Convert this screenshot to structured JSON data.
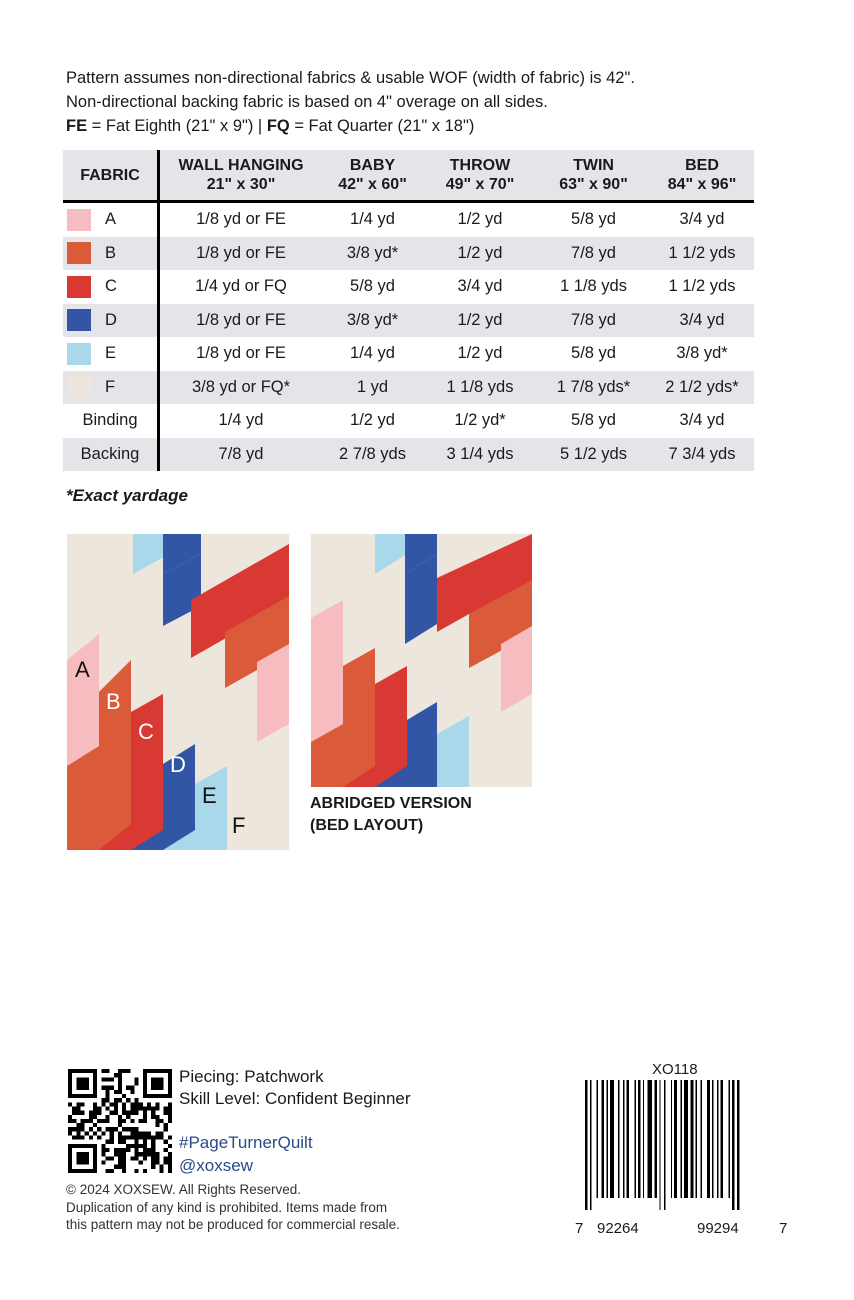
{
  "intro": {
    "line1": "Pattern assumes non-directional fabrics & usable WOF (width of fabric) is 42\".",
    "line2": "Non-directional backing fabric is based on 4\" overage on all sides.",
    "fe_abbr": "FE",
    "fe_text": " = Fat Eighth (21\" x 9\") | ",
    "fq_abbr": "FQ",
    "fq_text": " = Fat Quarter (21\" x 18\")"
  },
  "table": {
    "headers": [
      {
        "name": "FABRIC",
        "size": ""
      },
      {
        "name": "WALL HANGING",
        "size": "21\" x 30\""
      },
      {
        "name": "BABY",
        "size": "42\" x 60\""
      },
      {
        "name": "THROW",
        "size": "49\" x 70\""
      },
      {
        "name": "TWIN",
        "size": "63\" x 90\""
      },
      {
        "name": "BED",
        "size": "84\" x 96\""
      }
    ],
    "rows": [
      {
        "label": "A",
        "color": "#f7bcc0",
        "cells": [
          "1/8 yd or FE",
          "1/4 yd",
          "1/2 yd",
          "5/8 yd",
          "3/4 yd"
        ]
      },
      {
        "label": "B",
        "color": "#db5a3a",
        "cells": [
          "1/8 yd or FE",
          "3/8 yd*",
          "1/2 yd",
          "7/8 yd",
          "1 1/2 yds"
        ]
      },
      {
        "label": "C",
        "color": "#d83a33",
        "cells": [
          "1/4 yd or FQ",
          "5/8 yd",
          "3/4 yd",
          "1 1/8 yds",
          "1 1/2 yds"
        ]
      },
      {
        "label": "D",
        "color": "#3355a5",
        "cells": [
          "1/8 yd or FE",
          "3/8 yd*",
          "1/2 yd",
          "7/8 yd",
          "3/4 yd"
        ]
      },
      {
        "label": "E",
        "color": "#a8d8ea",
        "cells": [
          "1/8 yd or FE",
          "1/4 yd",
          "1/2 yd",
          "5/8 yd",
          "3/8 yd*"
        ]
      },
      {
        "label": "F",
        "color": "#ece6dc",
        "cells": [
          "3/8 yd or FQ*",
          "1 yd",
          "1 1/8 yds",
          "1 7/8 yds*",
          "2 1/2 yds*"
        ]
      },
      {
        "label": "Binding",
        "cells": [
          "1/4 yd",
          "1/2 yd",
          "1/2 yd*",
          "5/8 yd",
          "3/4 yd"
        ]
      },
      {
        "label": "Backing",
        "cells": [
          "7/8 yd",
          "2 7/8 yds",
          "3 1/4 yds",
          "5 1/2 yds",
          "7 3/4 yds"
        ]
      }
    ]
  },
  "footnote": "*Exact yardage",
  "quilt": {
    "letters": [
      "A",
      "B",
      "C",
      "D",
      "E",
      "F"
    ],
    "colors": {
      "A": "#f7bcc0",
      "B": "#db5a3a",
      "C": "#d83a33",
      "D": "#3355a5",
      "E": "#a8d8ea",
      "F": "#ece6dc"
    }
  },
  "abridged": {
    "line1": "ABRIDGED VERSION",
    "line2": "(BED LAYOUT)"
  },
  "info": {
    "piecing": "Piecing: Patchwork",
    "skill": "Skill Level: Confident Beginner",
    "hashtag": "#PageTurnerQuilt",
    "handle": "@xoxsew"
  },
  "copyright": {
    "line1": "© 2024 XOXSEW. All Rights Reserved.",
    "line2": "Duplication of any kind is prohibited. Items made from",
    "line3": "this pattern may not be produced for commercial resale."
  },
  "barcode": {
    "sku": "XO118",
    "digits": [
      "7",
      "92264",
      "99294",
      "7"
    ]
  },
  "icons": {
    "qr": "qr-code-icon",
    "barcode": "barcode-icon"
  }
}
